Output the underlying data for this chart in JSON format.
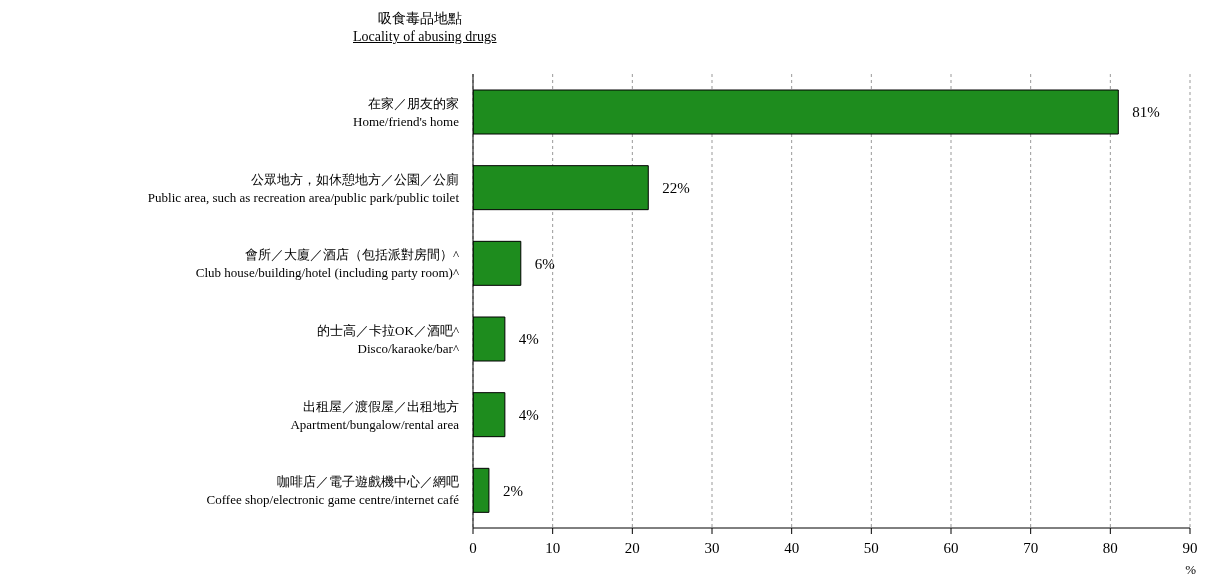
{
  "chart_data": {
    "type": "bar",
    "orientation": "horizontal",
    "title": "吸食毒品地點",
    "subtitle": "Locality of abusing drugs",
    "xlabel": "%",
    "categories": [
      "在家／朋友的家\nHome/friend's home",
      "公眾地方，如休憩地方／公園／公廁\nPublic area, such as recreation area/public park/public toilet",
      "會所／大廈／酒店（包括派對房間）^\nClub house/building/hotel (including party room)^",
      "的士高／卡拉OK／酒吧^\nDisco/karaoke/bar^",
      "出租屋／渡假屋／出租地方\nApartment/bungalow/rental area",
      "咖啡店／電子遊戲機中心／網吧\nCoffee shop/electronic game centre/internet café"
    ],
    "values": [
      81,
      22,
      6,
      4,
      4,
      2
    ],
    "value_labels": [
      "81%",
      "22%",
      "6%",
      "4%",
      "4%",
      "2%"
    ],
    "color": "#1e8c1e",
    "xlim": [
      0,
      90
    ],
    "xticks": [
      0,
      10,
      20,
      30,
      40,
      50,
      60,
      70,
      80,
      90
    ],
    "grid": "x"
  }
}
